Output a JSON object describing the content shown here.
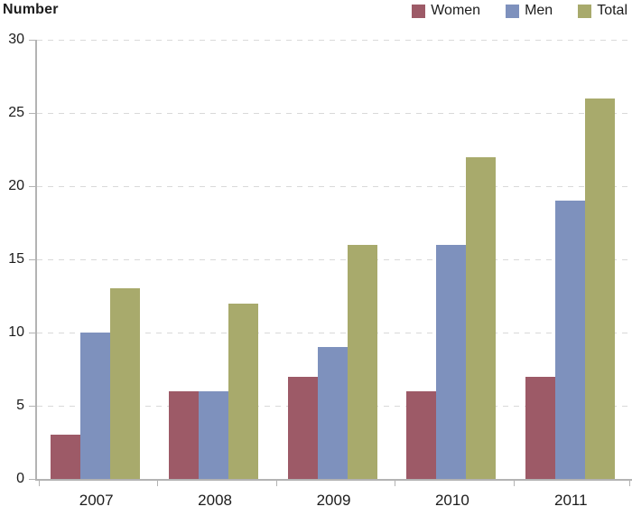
{
  "header": {
    "title": "Number"
  },
  "chart_data": {
    "type": "bar",
    "title": "Number",
    "xlabel": "",
    "ylabel": "Number",
    "categories": [
      "2007",
      "2008",
      "2009",
      "2010",
      "2011"
    ],
    "series": [
      {
        "name": "Women",
        "color": "#9d5a67",
        "values": [
          3,
          6,
          7,
          6,
          7
        ]
      },
      {
        "name": "Men",
        "color": "#7e91bd",
        "values": [
          10,
          6,
          9,
          16,
          19
        ]
      },
      {
        "name": "Total",
        "color": "#a8aa6c",
        "values": [
          13,
          12,
          16,
          22,
          26
        ]
      }
    ],
    "ylim": [
      0,
      30
    ],
    "ytick_step": 5,
    "yticks": [
      0,
      5,
      10,
      15,
      20,
      25,
      30
    ],
    "grid": "horizontal-dashed",
    "legend_position": "top-right",
    "colors": {
      "axis": "#b3b3b3",
      "grid": "#d9d9d9",
      "text": "#1c1c1c",
      "background": "#ffffff"
    }
  }
}
